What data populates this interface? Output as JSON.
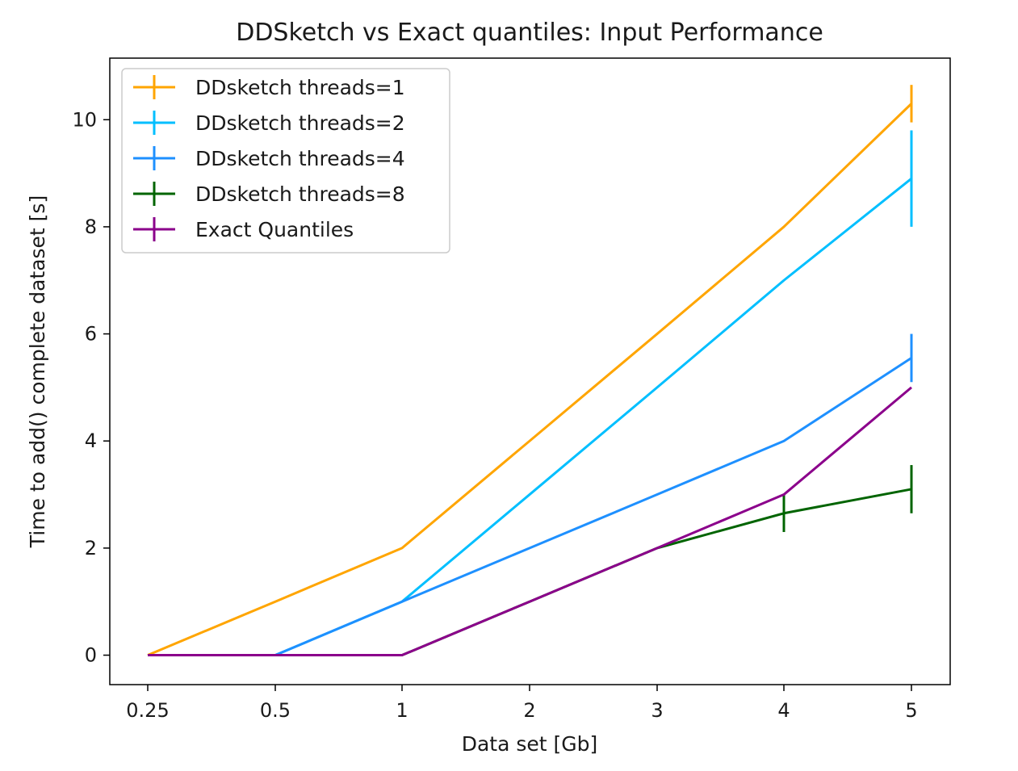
{
  "chart_data": {
    "type": "line",
    "title": "DDSketch vs Exact quantiles: Input Performance",
    "xlabel": "Data set [Gb]",
    "ylabel": "Time to add() complete dataset [s]",
    "categories": [
      "0.25",
      "0.5",
      "1",
      "2",
      "3",
      "4",
      "5"
    ],
    "ylim": [
      -0.55,
      11.15
    ],
    "yticks": [
      0,
      2,
      4,
      6,
      8,
      10
    ],
    "grid": false,
    "legend_position": "upper-left",
    "series": [
      {
        "name": "DDsketch threads=1",
        "color": "#FFA500",
        "values": [
          0,
          1,
          2,
          4,
          6,
          8,
          10.3
        ],
        "errors": [
          0,
          0,
          0,
          0,
          0,
          0,
          0.35
        ]
      },
      {
        "name": "DDsketch threads=2",
        "color": "#00BFFF",
        "values": [
          0,
          0,
          1,
          3,
          5,
          7,
          8.9
        ],
        "errors": [
          0,
          0,
          0,
          0,
          0,
          0,
          0.9
        ]
      },
      {
        "name": "DDsketch threads=4",
        "color": "#1E90FF",
        "values": [
          0,
          0,
          1,
          2,
          3,
          4,
          5.55
        ],
        "errors": [
          0,
          0,
          0,
          0,
          0,
          0,
          0.45
        ]
      },
      {
        "name": "DDsketch threads=8",
        "color": "#006400",
        "values": [
          0,
          0,
          0,
          1,
          2,
          2.65,
          3.1
        ],
        "errors": [
          0,
          0,
          0,
          0,
          0,
          0.35,
          0.45
        ]
      },
      {
        "name": "Exact Quantiles",
        "color": "#8B008B",
        "values": [
          0,
          0,
          0,
          1,
          2,
          3,
          5
        ],
        "errors": [
          0,
          0,
          0,
          0,
          0,
          0,
          0
        ]
      }
    ]
  }
}
